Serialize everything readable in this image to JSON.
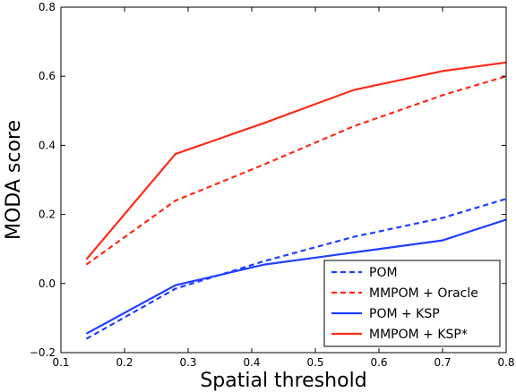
{
  "chart_data": {
    "type": "line",
    "xlabel": "Spatial threshold",
    "ylabel": "MODA score",
    "xlim": [
      0.1,
      0.8
    ],
    "ylim": [
      -0.2,
      0.8
    ],
    "x_ticks": [
      "0.1",
      "0.2",
      "0.3",
      "0.4",
      "0.5",
      "0.6",
      "0.7",
      "0.8"
    ],
    "y_ticks": [
      "−0.2",
      "0.0",
      "0.2",
      "0.4",
      "0.6",
      "0.8"
    ],
    "x_tick_values": [
      0.1,
      0.2,
      0.3,
      0.4,
      0.5,
      0.6,
      0.7,
      0.8
    ],
    "y_tick_values": [
      -0.2,
      0.0,
      0.2,
      0.4,
      0.6,
      0.8
    ],
    "grid": false,
    "legend_position": "bottom-right",
    "series": [
      {
        "name": "POM",
        "color": "#1f3fff",
        "style": "dashed",
        "x": [
          0.14,
          0.28,
          0.42,
          0.56,
          0.7,
          0.8
        ],
        "y": [
          -0.16,
          -0.015,
          0.065,
          0.135,
          0.19,
          0.245
        ]
      },
      {
        "name": "MMPOM + Oracle",
        "color": "#ff2a1a",
        "style": "dashed",
        "x": [
          0.14,
          0.28,
          0.42,
          0.56,
          0.7,
          0.8
        ],
        "y": [
          0.055,
          0.24,
          0.345,
          0.455,
          0.545,
          0.6
        ]
      },
      {
        "name": "POM + KSP",
        "color": "#1f3fff",
        "style": "solid",
        "x": [
          0.14,
          0.28,
          0.42,
          0.56,
          0.7,
          0.8
        ],
        "y": [
          -0.145,
          -0.005,
          0.055,
          0.09,
          0.125,
          0.185
        ]
      },
      {
        "name": "MMPOM + KSP*",
        "color": "#ff2a1a",
        "style": "solid",
        "x": [
          0.14,
          0.28,
          0.42,
          0.56,
          0.7,
          0.8
        ],
        "y": [
          0.07,
          0.375,
          0.465,
          0.56,
          0.615,
          0.64
        ]
      }
    ]
  }
}
